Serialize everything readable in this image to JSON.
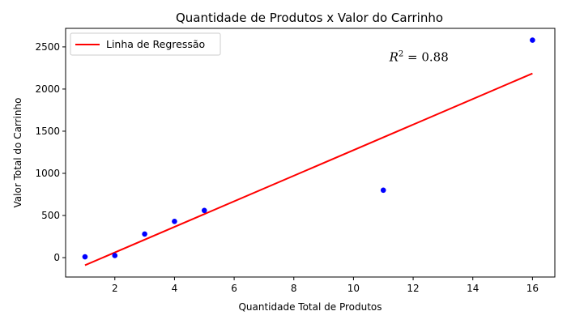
{
  "chart_data": {
    "type": "scatter",
    "title": "Quantidade de Produtos x Valor do Carrinho",
    "xlabel": "Quantidade Total de Produtos",
    "ylabel": "Valor Total do Carrinho",
    "xlim": [
      0.35,
      16.75
    ],
    "ylim": [
      -230,
      2720
    ],
    "xticks": [
      2,
      4,
      6,
      8,
      10,
      12,
      14,
      16
    ],
    "yticks": [
      0,
      500,
      1000,
      1500,
      2000,
      2500
    ],
    "points": [
      {
        "x": 1,
        "y": 10
      },
      {
        "x": 2,
        "y": 25
      },
      {
        "x": 3,
        "y": 280
      },
      {
        "x": 4,
        "y": 430
      },
      {
        "x": 5,
        "y": 560
      },
      {
        "x": 11,
        "y": 800
      },
      {
        "x": 16,
        "y": 2580
      }
    ],
    "point_color": "#0000ff",
    "regression": {
      "name": "Linha de Regressão",
      "color": "#ff0000",
      "x0": 1,
      "y0": -90,
      "x1": 16,
      "y1": 2185
    },
    "annotation": {
      "base": "R",
      "exp": "2",
      "text": " = 0.88",
      "x": 11.2,
      "y": 2330
    },
    "legend_position": "top-left",
    "grid": false
  }
}
